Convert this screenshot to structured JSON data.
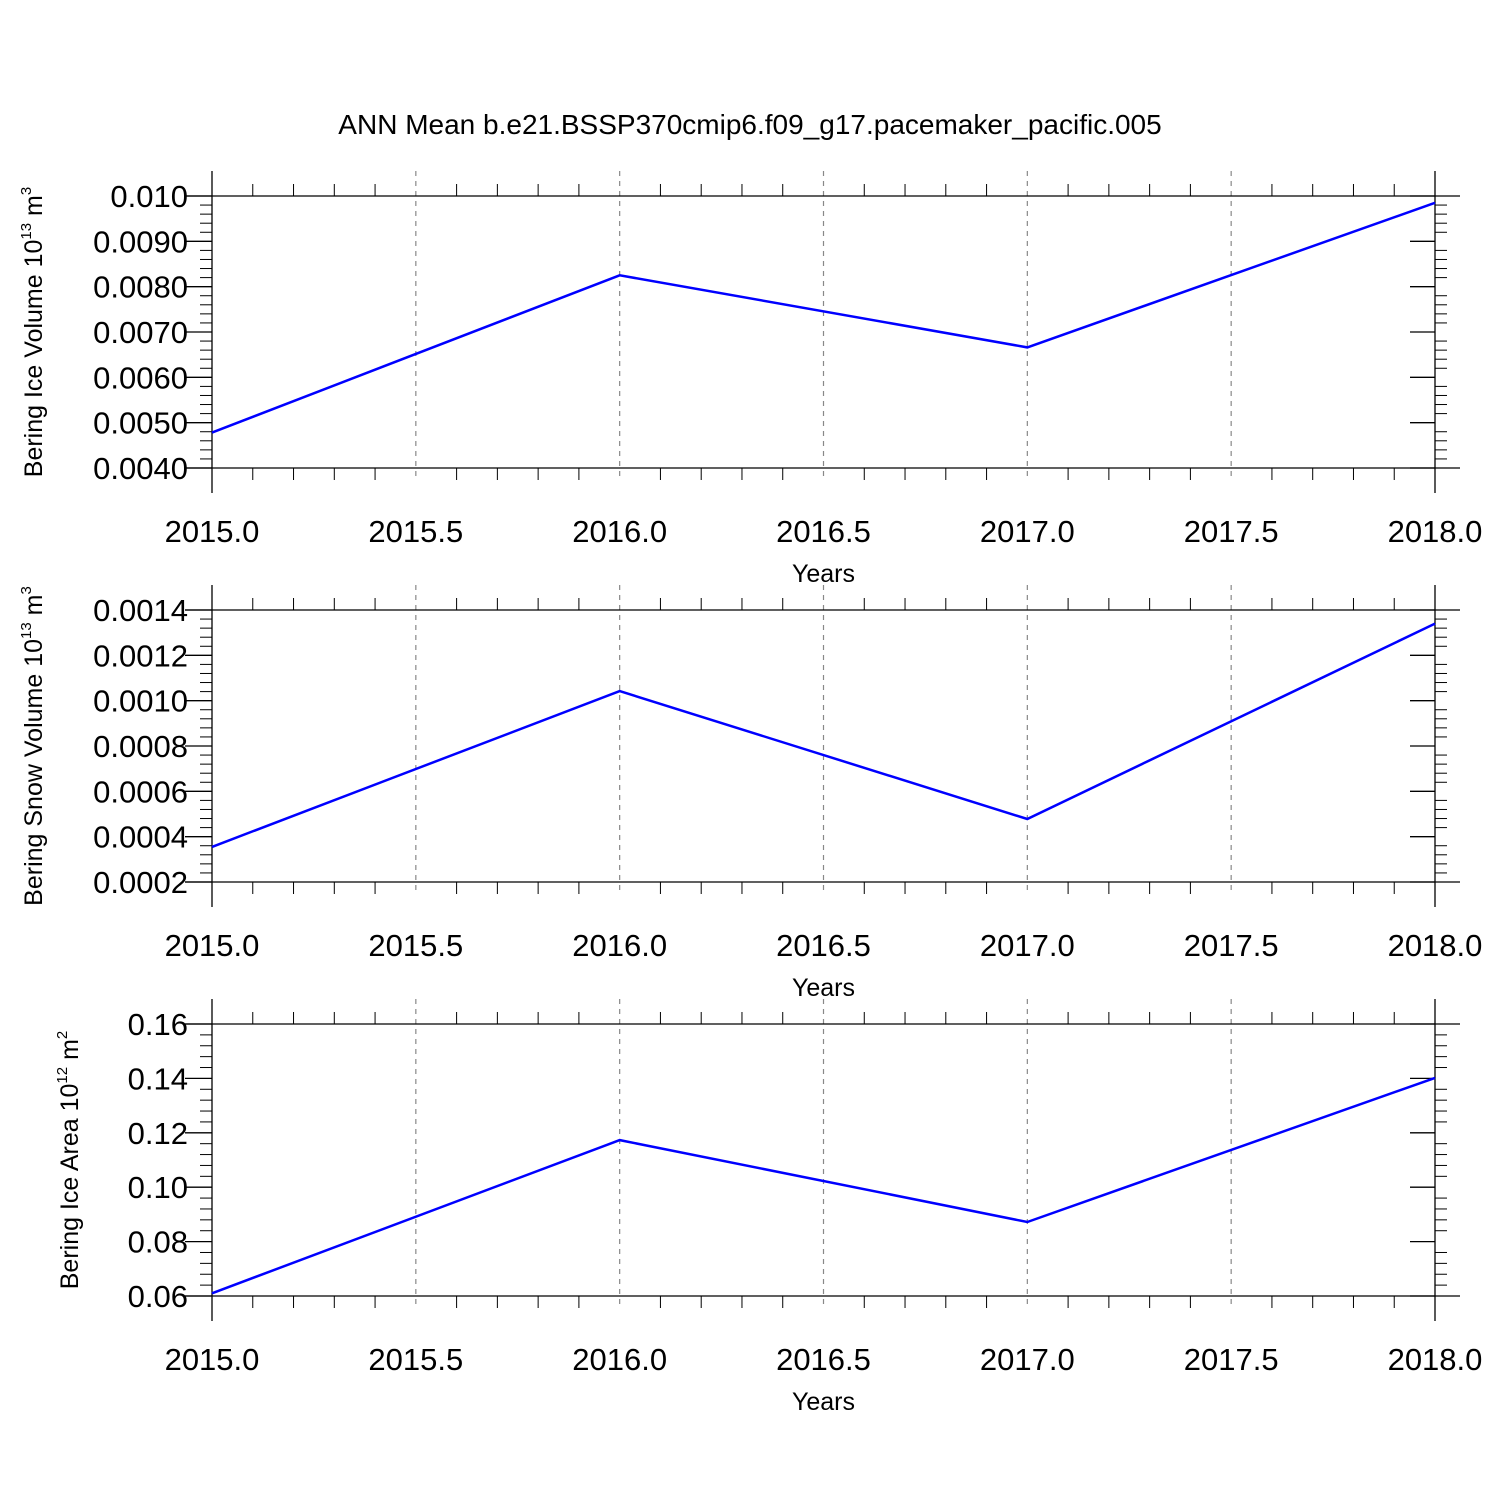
{
  "figure": {
    "title": "ANN Mean b.e21.BSSP370cmip6.f09_g17.pacemaker_pacific.005"
  },
  "chart_data": [
    {
      "type": "line",
      "title": "",
      "xlabel": "Years",
      "ylabel": {
        "text": "Bering Ice Volume 10",
        "exponent": "13",
        "unit": " m",
        "unit_exponent": "3"
      },
      "x": [
        2015,
        2016,
        2017,
        2018
      ],
      "series": [
        {
          "values": [
            0.00478,
            0.00825,
            0.00666,
            0.00985
          ],
          "color": "#0000ff"
        }
      ],
      "xlim": [
        2015,
        2018
      ],
      "ylim": [
        0.004,
        0.01
      ],
      "xticks": [
        2015.0,
        2015.5,
        2016.0,
        2016.5,
        2017.0,
        2017.5,
        2018.0
      ],
      "xtick_labels": [
        "2015.0",
        "2015.5",
        "2016.0",
        "2016.5",
        "2017.0",
        "2017.5",
        "2018.0"
      ],
      "yticks": [
        0.004,
        0.005,
        0.006,
        0.007,
        0.008,
        0.009,
        0.01
      ],
      "ytick_labels": [
        "0.0040",
        "0.0050",
        "0.0060",
        "0.0070",
        "0.0080",
        "0.0090",
        "0.010"
      ],
      "yminor_step": 0.0002,
      "grid": "vertical dashed"
    },
    {
      "type": "line",
      "title": "",
      "xlabel": "Years",
      "ylabel": {
        "text": "Bering Snow Volume 10",
        "exponent": "13",
        "unit": " m",
        "unit_exponent": "3"
      },
      "x": [
        2015,
        2016,
        2017,
        2018
      ],
      "series": [
        {
          "values": [
            0.000355,
            0.001042,
            0.000478,
            0.00134
          ],
          "color": "#0000ff"
        }
      ],
      "xlim": [
        2015,
        2018
      ],
      "ylim": [
        0.0002,
        0.0014
      ],
      "xticks": [
        2015.0,
        2015.5,
        2016.0,
        2016.5,
        2017.0,
        2017.5,
        2018.0
      ],
      "xtick_labels": [
        "2015.0",
        "2015.5",
        "2016.0",
        "2016.5",
        "2017.0",
        "2017.5",
        "2018.0"
      ],
      "yticks": [
        0.0002,
        0.0004,
        0.0006,
        0.0008,
        0.001,
        0.0012,
        0.0014
      ],
      "ytick_labels": [
        "0.0002",
        "0.0004",
        "0.0006",
        "0.0008",
        "0.0010",
        "0.0012",
        "0.0014"
      ],
      "yminor_step": 4e-05,
      "grid": "vertical dashed"
    },
    {
      "type": "line",
      "title": "",
      "xlabel": "Years",
      "ylabel": {
        "text": "Bering Ice Area 10",
        "exponent": "12",
        "unit": " m",
        "unit_exponent": "2"
      },
      "x": [
        2015,
        2016,
        2017,
        2018
      ],
      "series": [
        {
          "values": [
            0.061,
            0.1173,
            0.0872,
            0.1402
          ],
          "color": "#0000ff"
        }
      ],
      "xlim": [
        2015,
        2018
      ],
      "ylim": [
        0.06,
        0.16
      ],
      "xticks": [
        2015.0,
        2015.5,
        2016.0,
        2016.5,
        2017.0,
        2017.5,
        2018.0
      ],
      "xtick_labels": [
        "2015.0",
        "2015.5",
        "2016.0",
        "2016.5",
        "2017.0",
        "2017.5",
        "2018.0"
      ],
      "yticks": [
        0.06,
        0.08,
        0.1,
        0.12,
        0.14,
        0.16
      ],
      "ytick_labels": [
        "0.06",
        "0.08",
        "0.10",
        "0.12",
        "0.14",
        "0.16"
      ],
      "yminor_step": 0.004,
      "grid": "vertical dashed"
    }
  ]
}
